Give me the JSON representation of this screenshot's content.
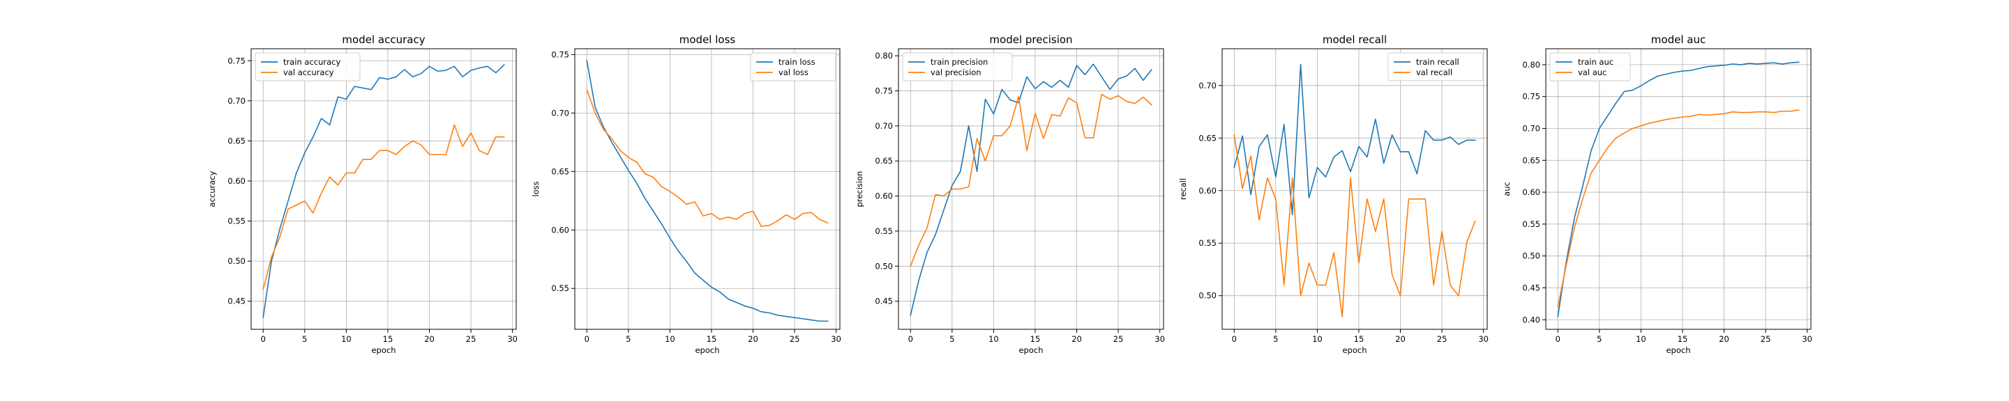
{
  "colors": {
    "train": "#1f77b4",
    "val": "#ff7f0e",
    "grid": "#b0b0b0",
    "axis": "#000000"
  },
  "chart_data": [
    {
      "type": "line",
      "title": "model accuracy",
      "xlabel": "epoch",
      "ylabel": "accuracy",
      "xlim": [
        -1.45,
        30.45
      ],
      "ylim": [
        0.415,
        0.765
      ],
      "xticks": [
        0,
        5,
        10,
        15,
        20,
        25,
        30
      ],
      "yticks": [
        0.45,
        0.5,
        0.55,
        0.6,
        0.65,
        0.7,
        0.75
      ],
      "ytick_labels": [
        "0.45",
        "0.50",
        "0.55",
        "0.60",
        "0.65",
        "0.70",
        "0.75"
      ],
      "grid": true,
      "legend_position": "upper-left",
      "x": [
        0,
        1,
        2,
        3,
        4,
        5,
        6,
        7,
        8,
        9,
        10,
        11,
        12,
        13,
        14,
        15,
        16,
        17,
        18,
        19,
        20,
        21,
        22,
        23,
        24,
        25,
        26,
        27,
        28,
        29
      ],
      "series": [
        {
          "name": "train accuracy",
          "color": "#1f77b4",
          "values": [
            0.43,
            0.5,
            0.54,
            0.575,
            0.61,
            0.635,
            0.655,
            0.678,
            0.67,
            0.705,
            0.702,
            0.718,
            0.716,
            0.714,
            0.729,
            0.727,
            0.73,
            0.739,
            0.73,
            0.734,
            0.743,
            0.737,
            0.738,
            0.743,
            0.73,
            0.738,
            0.741,
            0.743,
            0.735,
            0.745
          ]
        },
        {
          "name": "val accuracy",
          "color": "#ff7f0e",
          "values": [
            0.465,
            0.505,
            0.53,
            0.565,
            0.57,
            0.575,
            0.56,
            0.585,
            0.605,
            0.595,
            0.61,
            0.61,
            0.627,
            0.627,
            0.638,
            0.638,
            0.633,
            0.643,
            0.65,
            0.645,
            0.633,
            0.633,
            0.633,
            0.67,
            0.643,
            0.66,
            0.638,
            0.633,
            0.655,
            0.655
          ]
        }
      ]
    },
    {
      "type": "line",
      "title": "model loss",
      "xlabel": "epoch",
      "ylabel": "loss",
      "xlim": [
        -1.45,
        30.45
      ],
      "ylim": [
        0.515,
        0.755
      ],
      "xticks": [
        0,
        5,
        10,
        15,
        20,
        25,
        30
      ],
      "yticks": [
        0.55,
        0.6,
        0.65,
        0.7,
        0.75
      ],
      "ytick_labels": [
        "0.55",
        "0.60",
        "0.65",
        "0.70",
        "0.75"
      ],
      "grid": true,
      "legend_position": "upper-right",
      "x": [
        0,
        1,
        2,
        3,
        4,
        5,
        6,
        7,
        8,
        9,
        10,
        11,
        12,
        13,
        14,
        15,
        16,
        17,
        18,
        19,
        20,
        21,
        22,
        23,
        24,
        25,
        26,
        27,
        28,
        29
      ],
      "series": [
        {
          "name": "train loss",
          "color": "#1f77b4",
          "values": [
            0.745,
            0.705,
            0.688,
            0.675,
            0.663,
            0.651,
            0.64,
            0.627,
            0.616,
            0.605,
            0.593,
            0.582,
            0.573,
            0.563,
            0.557,
            0.551,
            0.547,
            0.541,
            0.538,
            0.535,
            0.533,
            0.53,
            0.529,
            0.527,
            0.526,
            0.525,
            0.524,
            0.523,
            0.522,
            0.522
          ]
        },
        {
          "name": "val loss",
          "color": "#ff7f0e",
          "values": [
            0.72,
            0.7,
            0.686,
            0.678,
            0.668,
            0.662,
            0.658,
            0.648,
            0.645,
            0.637,
            0.633,
            0.628,
            0.622,
            0.624,
            0.612,
            0.614,
            0.609,
            0.611,
            0.609,
            0.614,
            0.616,
            0.603,
            0.604,
            0.608,
            0.613,
            0.609,
            0.614,
            0.615,
            0.609,
            0.606
          ]
        }
      ]
    },
    {
      "type": "line",
      "title": "model precision",
      "xlabel": "epoch",
      "ylabel": "precision",
      "xlim": [
        -1.45,
        30.45
      ],
      "ylim": [
        0.41,
        0.81
      ],
      "xticks": [
        0,
        5,
        10,
        15,
        20,
        25,
        30
      ],
      "yticks": [
        0.45,
        0.5,
        0.55,
        0.6,
        0.65,
        0.7,
        0.75,
        0.8
      ],
      "ytick_labels": [
        "0.45",
        "0.50",
        "0.55",
        "0.60",
        "0.65",
        "0.70",
        "0.75",
        "0.80"
      ],
      "grid": true,
      "legend_position": "upper-left",
      "x": [
        0,
        1,
        2,
        3,
        4,
        5,
        6,
        7,
        8,
        9,
        10,
        11,
        12,
        13,
        14,
        15,
        16,
        17,
        18,
        19,
        20,
        21,
        22,
        23,
        24,
        25,
        26,
        27,
        28,
        29
      ],
      "series": [
        {
          "name": "train precision",
          "color": "#1f77b4",
          "values": [
            0.43,
            0.48,
            0.52,
            0.545,
            0.58,
            0.615,
            0.635,
            0.7,
            0.635,
            0.738,
            0.717,
            0.752,
            0.737,
            0.733,
            0.77,
            0.753,
            0.763,
            0.755,
            0.765,
            0.755,
            0.786,
            0.773,
            0.788,
            0.77,
            0.752,
            0.767,
            0.771,
            0.782,
            0.765,
            0.78
          ]
        },
        {
          "name": "val precision",
          "color": "#ff7f0e",
          "values": [
            0.5,
            0.53,
            0.555,
            0.602,
            0.6,
            0.61,
            0.61,
            0.613,
            0.682,
            0.65,
            0.686,
            0.686,
            0.7,
            0.742,
            0.665,
            0.718,
            0.682,
            0.716,
            0.714,
            0.74,
            0.733,
            0.683,
            0.683,
            0.745,
            0.738,
            0.743,
            0.735,
            0.732,
            0.741,
            0.73
          ]
        }
      ]
    },
    {
      "type": "line",
      "title": "model recall",
      "xlabel": "epoch",
      "ylabel": "recall",
      "xlim": [
        -1.45,
        30.45
      ],
      "ylim": [
        0.468,
        0.735
      ],
      "xticks": [
        0,
        5,
        10,
        15,
        20,
        25,
        30
      ],
      "yticks": [
        0.5,
        0.55,
        0.6,
        0.65,
        0.7
      ],
      "ytick_labels": [
        "0.50",
        "0.55",
        "0.60",
        "0.65",
        "0.70"
      ],
      "grid": true,
      "legend_position": "upper-right",
      "x": [
        0,
        1,
        2,
        3,
        4,
        5,
        6,
        7,
        8,
        9,
        10,
        11,
        12,
        13,
        14,
        15,
        16,
        17,
        18,
        19,
        20,
        21,
        22,
        23,
        24,
        25,
        26,
        27,
        28,
        29
      ],
      "series": [
        {
          "name": "train recall",
          "color": "#1f77b4",
          "values": [
            0.622,
            0.652,
            0.596,
            0.642,
            0.653,
            0.613,
            0.663,
            0.577,
            0.72,
            0.593,
            0.622,
            0.613,
            0.632,
            0.638,
            0.618,
            0.642,
            0.632,
            0.668,
            0.626,
            0.653,
            0.637,
            0.637,
            0.616,
            0.657,
            0.648,
            0.648,
            0.651,
            0.644,
            0.648,
            0.648
          ]
        },
        {
          "name": "val recall",
          "color": "#ff7f0e",
          "values": [
            0.653,
            0.602,
            0.633,
            0.572,
            0.612,
            0.592,
            0.51,
            0.612,
            0.5,
            0.531,
            0.51,
            0.51,
            0.541,
            0.48,
            0.612,
            0.531,
            0.592,
            0.561,
            0.592,
            0.52,
            0.5,
            0.592,
            0.592,
            0.592,
            0.51,
            0.561,
            0.51,
            0.5,
            0.551,
            0.571
          ]
        }
      ]
    },
    {
      "type": "line",
      "title": "model auc",
      "xlabel": "epoch",
      "ylabel": "auc",
      "xlim": [
        -1.45,
        30.45
      ],
      "ylim": [
        0.385,
        0.825
      ],
      "xticks": [
        0,
        5,
        10,
        15,
        20,
        25,
        30
      ],
      "yticks": [
        0.4,
        0.45,
        0.5,
        0.55,
        0.6,
        0.65,
        0.7,
        0.75,
        0.8
      ],
      "ytick_labels": [
        "0.40",
        "0.45",
        "0.50",
        "0.55",
        "0.60",
        "0.65",
        "0.70",
        "0.75",
        "0.80"
      ],
      "grid": true,
      "legend_position": "upper-left",
      "x": [
        0,
        1,
        2,
        3,
        4,
        5,
        6,
        7,
        8,
        9,
        10,
        11,
        12,
        13,
        14,
        15,
        16,
        17,
        18,
        19,
        20,
        21,
        22,
        23,
        24,
        25,
        26,
        27,
        28,
        29
      ],
      "series": [
        {
          "name": "train auc",
          "color": "#1f77b4",
          "values": [
            0.405,
            0.49,
            0.56,
            0.61,
            0.665,
            0.7,
            0.72,
            0.74,
            0.758,
            0.76,
            0.767,
            0.775,
            0.782,
            0.785,
            0.788,
            0.79,
            0.791,
            0.794,
            0.797,
            0.798,
            0.799,
            0.801,
            0.8,
            0.802,
            0.801,
            0.802,
            0.803,
            0.801,
            0.803,
            0.804
          ]
        },
        {
          "name": "val auc",
          "color": "#ff7f0e",
          "values": [
            0.42,
            0.485,
            0.545,
            0.59,
            0.63,
            0.65,
            0.67,
            0.685,
            0.693,
            0.7,
            0.704,
            0.708,
            0.711,
            0.714,
            0.716,
            0.718,
            0.719,
            0.722,
            0.721,
            0.722,
            0.723,
            0.726,
            0.725,
            0.725,
            0.726,
            0.726,
            0.725,
            0.727,
            0.727,
            0.729
          ]
        }
      ]
    }
  ]
}
